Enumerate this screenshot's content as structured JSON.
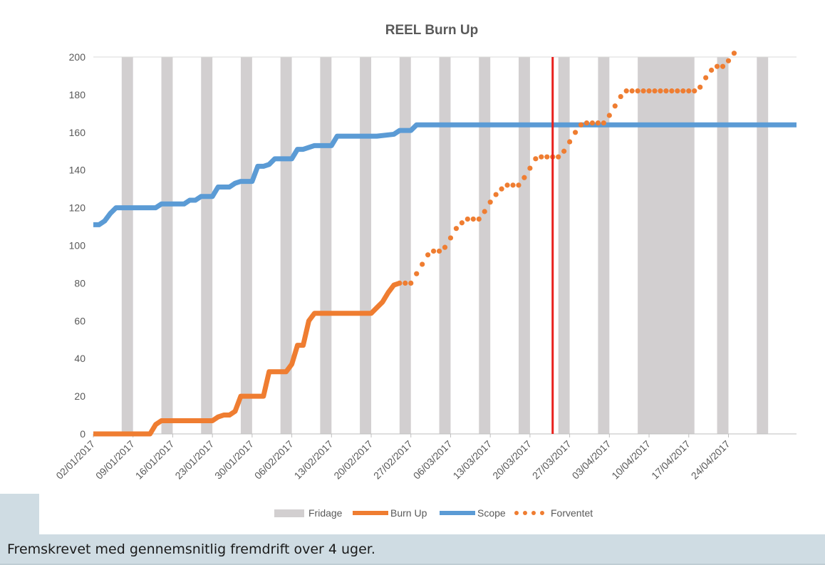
{
  "chart_data": {
    "type": "line",
    "title": "REEL Burn Up",
    "xlabel": "",
    "ylabel": "",
    "ylim": [
      0,
      200
    ],
    "yticks": [
      0,
      20,
      40,
      60,
      80,
      100,
      120,
      140,
      160,
      180,
      200
    ],
    "xlim": [
      "2017-01-02",
      "2017-05-06"
    ],
    "xtick_labels": [
      "02/01/2017",
      "09/01/2017",
      "16/01/2017",
      "23/01/2017",
      "30/01/2017",
      "06/02/2017",
      "13/02/2017",
      "20/02/2017",
      "27/02/2017",
      "06/03/2017",
      "13/03/2017",
      "20/03/2017",
      "27/03/2017",
      "03/04/2017",
      "10/04/2017",
      "17/04/2017",
      "24/04/2017"
    ],
    "xtick_dates": [
      "2017-01-02",
      "2017-01-09",
      "2017-01-16",
      "2017-01-23",
      "2017-01-30",
      "2017-02-06",
      "2017-02-13",
      "2017-02-20",
      "2017-02-27",
      "2017-03-06",
      "2017-03-13",
      "2017-03-20",
      "2017-03-27",
      "2017-04-03",
      "2017-04-10",
      "2017-04-17",
      "2017-04-24"
    ],
    "grid": false,
    "legend": "bottom",
    "fridage": {
      "name": "Fridage",
      "color": "#d2cfd0",
      "periods": [
        [
          "2017-01-07",
          "2017-01-09"
        ],
        [
          "2017-01-14",
          "2017-01-16"
        ],
        [
          "2017-01-21",
          "2017-01-23"
        ],
        [
          "2017-01-28",
          "2017-01-30"
        ],
        [
          "2017-02-04",
          "2017-02-06"
        ],
        [
          "2017-02-11",
          "2017-02-13"
        ],
        [
          "2017-02-18",
          "2017-02-20"
        ],
        [
          "2017-02-25",
          "2017-02-27"
        ],
        [
          "2017-03-04",
          "2017-03-06"
        ],
        [
          "2017-03-11",
          "2017-03-13"
        ],
        [
          "2017-03-18",
          "2017-03-20"
        ],
        [
          "2017-03-25",
          "2017-03-27"
        ],
        [
          "2017-04-01",
          "2017-04-03"
        ],
        [
          "2017-04-08",
          "2017-04-18"
        ],
        [
          "2017-04-22",
          "2017-04-24"
        ],
        [
          "2017-04-29",
          "2017-05-01"
        ]
      ]
    },
    "today_marker": {
      "date": "2017-03-24",
      "color": "#e8201c"
    },
    "series": [
      {
        "name": "Burn Up",
        "color": "#ef7d31",
        "style": "solid",
        "x": [
          "2017-01-02",
          "2017-01-12",
          "2017-01-13",
          "2017-01-14",
          "2017-01-15",
          "2017-01-23",
          "2017-01-24",
          "2017-01-25",
          "2017-01-26",
          "2017-01-27",
          "2017-01-28",
          "2017-02-01",
          "2017-02-02",
          "2017-02-05",
          "2017-02-06",
          "2017-02-07",
          "2017-02-08",
          "2017-02-09",
          "2017-02-10",
          "2017-02-11",
          "2017-02-20",
          "2017-02-21",
          "2017-02-22",
          "2017-02-23",
          "2017-02-24",
          "2017-02-25"
        ],
        "values": [
          0,
          0,
          5,
          7,
          7,
          7,
          9,
          10,
          10,
          12,
          20,
          20,
          33,
          33,
          37,
          47,
          47,
          60,
          64,
          64,
          64,
          67,
          70,
          75,
          79,
          80
        ]
      },
      {
        "name": "Scope",
        "color": "#5b9bd5",
        "style": "solid",
        "x": [
          "2017-01-02",
          "2017-01-03",
          "2017-01-04",
          "2017-01-05",
          "2017-01-06",
          "2017-01-13",
          "2017-01-14",
          "2017-01-18",
          "2017-01-19",
          "2017-01-20",
          "2017-01-21",
          "2017-01-23",
          "2017-01-24",
          "2017-01-26",
          "2017-01-27",
          "2017-01-28",
          "2017-01-30",
          "2017-01-31",
          "2017-02-01",
          "2017-02-02",
          "2017-02-03",
          "2017-02-06",
          "2017-02-07",
          "2017-02-08",
          "2017-02-09",
          "2017-02-10",
          "2017-02-13",
          "2017-02-14",
          "2017-02-20",
          "2017-02-21",
          "2017-02-24",
          "2017-02-25",
          "2017-02-27",
          "2017-02-28",
          "2017-05-06"
        ],
        "values": [
          111,
          111,
          113,
          117,
          120,
          120,
          122,
          122,
          124,
          124,
          126,
          126,
          131,
          131,
          133,
          134,
          134,
          142,
          142,
          143,
          146,
          146,
          151,
          151,
          152,
          153,
          153,
          158,
          158,
          158,
          159,
          161,
          161,
          164,
          164
        ]
      },
      {
        "name": "Forventet",
        "color": "#ef7d31",
        "style": "dotted",
        "x": [
          "2017-02-25",
          "2017-02-26",
          "2017-02-27",
          "2017-02-28",
          "2017-03-01",
          "2017-03-02",
          "2017-03-03",
          "2017-03-04",
          "2017-03-05",
          "2017-03-06",
          "2017-03-07",
          "2017-03-08",
          "2017-03-09",
          "2017-03-10",
          "2017-03-11",
          "2017-03-12",
          "2017-03-13",
          "2017-03-14",
          "2017-03-15",
          "2017-03-16",
          "2017-03-17",
          "2017-03-18",
          "2017-03-19",
          "2017-03-20",
          "2017-03-21",
          "2017-03-22",
          "2017-03-23",
          "2017-03-24",
          "2017-03-25",
          "2017-03-26",
          "2017-03-27",
          "2017-03-28",
          "2017-03-29",
          "2017-03-30",
          "2017-03-31",
          "2017-04-01",
          "2017-04-02",
          "2017-04-03",
          "2017-04-04",
          "2017-04-05",
          "2017-04-06",
          "2017-04-07",
          "2017-04-08",
          "2017-04-09",
          "2017-04-10",
          "2017-04-11",
          "2017-04-12",
          "2017-04-13",
          "2017-04-14",
          "2017-04-15",
          "2017-04-16",
          "2017-04-17",
          "2017-04-18",
          "2017-04-19",
          "2017-04-20",
          "2017-04-21",
          "2017-04-22",
          "2017-04-23",
          "2017-04-24",
          "2017-04-25"
        ],
        "values": [
          80,
          80,
          80,
          85,
          90,
          95,
          97,
          97,
          99,
          104,
          109,
          112,
          114,
          114,
          114,
          118,
          123,
          127,
          130,
          132,
          132,
          132,
          136,
          141,
          146,
          147,
          147,
          147,
          147,
          150,
          155,
          160,
          164,
          165,
          165,
          165,
          165,
          169,
          174,
          179,
          182,
          182,
          182,
          182,
          182,
          182,
          182,
          182,
          182,
          182,
          182,
          182,
          182,
          184,
          189,
          193,
          195,
          195,
          198,
          202
        ]
      }
    ]
  },
  "caption": "Fremskrevet med gennemsnitlig fremdrift over 4 uger."
}
